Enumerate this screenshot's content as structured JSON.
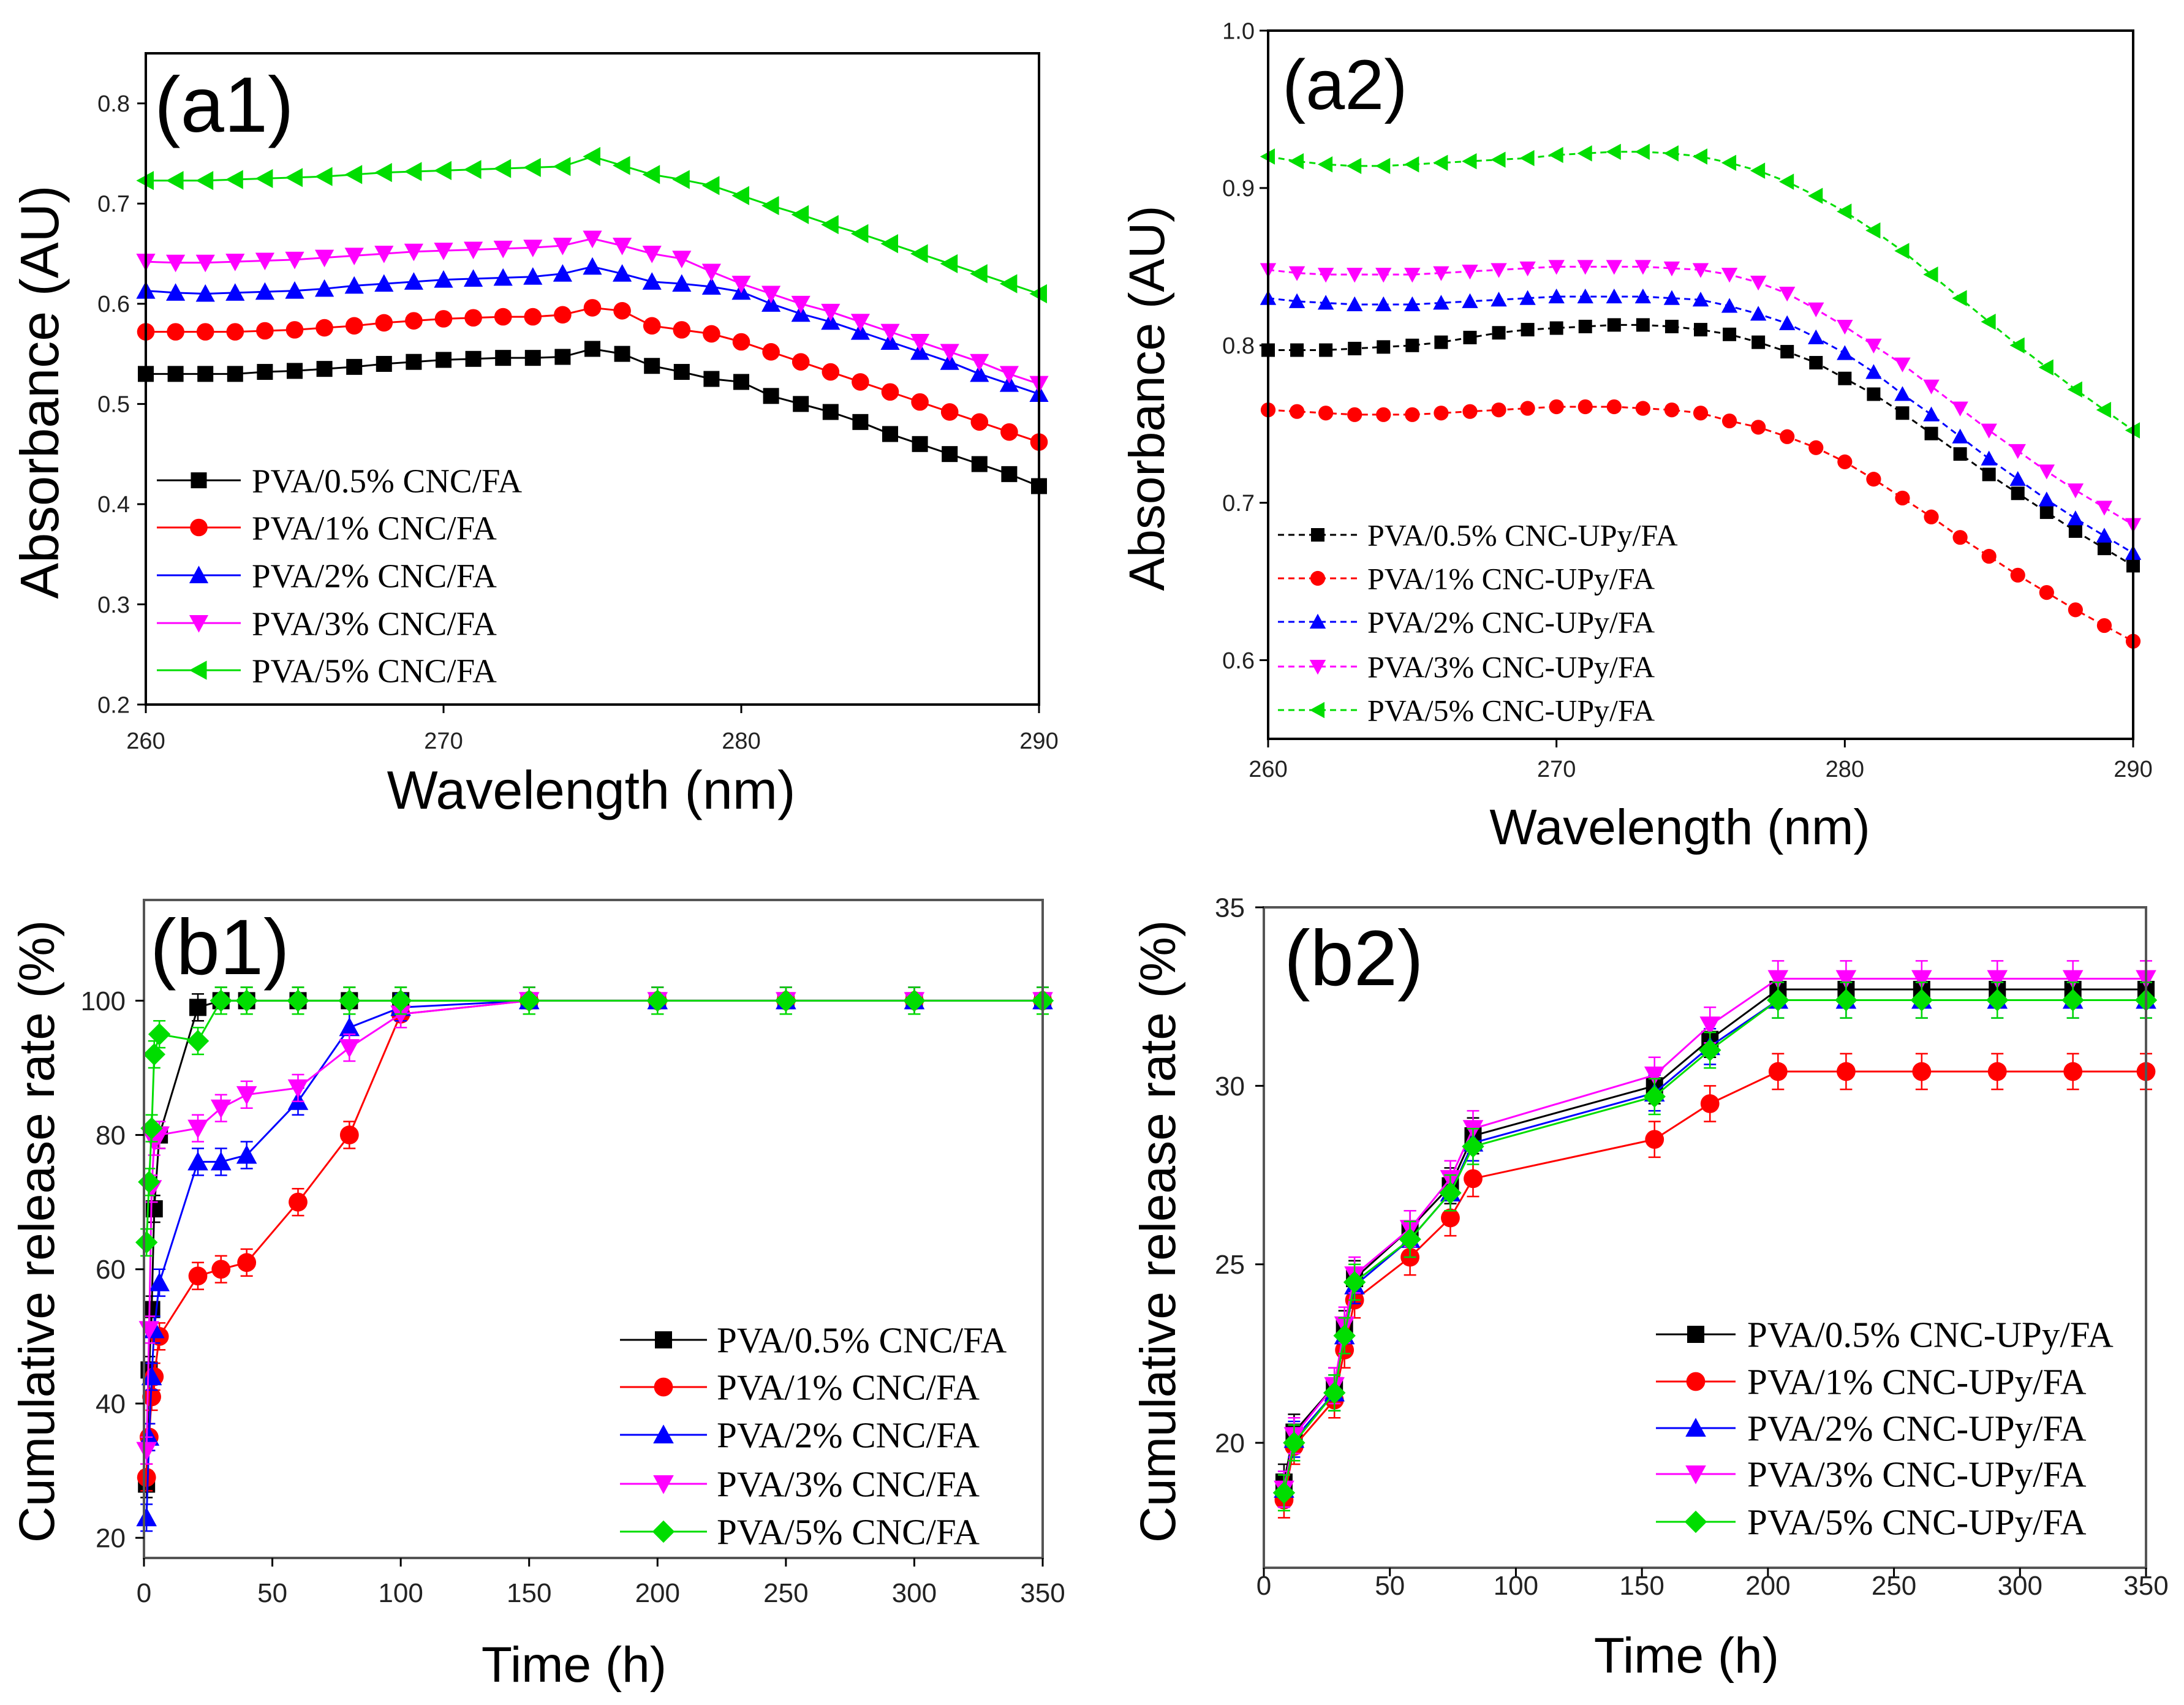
{
  "chart_data": [
    {
      "type": "line",
      "panel_label": "(a1)",
      "xlabel": "Wavelength (nm)",
      "ylabel": "Absorbance (AU)",
      "xlim": [
        260,
        290
      ],
      "ylim": [
        0.2,
        0.85
      ],
      "xticks": [
        260,
        270,
        280,
        290
      ],
      "xtick_labels": [
        "260",
        "270",
        "280",
        "290"
      ],
      "yticks": [
        0.2,
        0.3,
        0.4,
        0.5,
        0.6,
        0.7,
        0.8
      ],
      "ytick_labels": [
        "0.2",
        "0.3",
        "0.4",
        "0.5",
        "0.6",
        "0.7",
        "0.8"
      ],
      "line_style": "solid",
      "legend_position": "bottom-left",
      "x": [
        260,
        261,
        262,
        263,
        264,
        265,
        266,
        267,
        268,
        269,
        270,
        271,
        272,
        273,
        274,
        275,
        276,
        277,
        278,
        279,
        280,
        281,
        282,
        283,
        284,
        285,
        286,
        287,
        288,
        289,
        290
      ],
      "series": [
        {
          "name": "PVA/0.5% CNC/FA",
          "color": "#000000",
          "marker": "square",
          "values": [
            0.53,
            0.53,
            0.53,
            0.53,
            0.532,
            0.533,
            0.535,
            0.537,
            0.54,
            0.542,
            0.544,
            0.545,
            0.546,
            0.546,
            0.547,
            0.555,
            0.55,
            0.538,
            0.532,
            0.525,
            0.522,
            0.508,
            0.5,
            0.492,
            0.482,
            0.47,
            0.46,
            0.45,
            0.44,
            0.43,
            0.418
          ]
        },
        {
          "name": "PVA/1% CNC/FA",
          "color": "#ff0000",
          "marker": "circle",
          "values": [
            0.572,
            0.572,
            0.572,
            0.572,
            0.573,
            0.574,
            0.576,
            0.578,
            0.581,
            0.583,
            0.585,
            0.586,
            0.587,
            0.587,
            0.589,
            0.596,
            0.593,
            0.578,
            0.574,
            0.57,
            0.562,
            0.552,
            0.542,
            0.532,
            0.522,
            0.512,
            0.502,
            0.492,
            0.482,
            0.472,
            0.462
          ]
        },
        {
          "name": "PVA/2% CNC/FA",
          "color": "#0000ff",
          "marker": "triangle-up",
          "values": [
            0.613,
            0.611,
            0.61,
            0.611,
            0.612,
            0.613,
            0.615,
            0.618,
            0.62,
            0.622,
            0.624,
            0.625,
            0.626,
            0.627,
            0.63,
            0.637,
            0.63,
            0.622,
            0.62,
            0.617,
            0.612,
            0.6,
            0.59,
            0.582,
            0.572,
            0.562,
            0.552,
            0.542,
            0.53,
            0.52,
            0.51
          ]
        },
        {
          "name": "PVA/3% CNC/FA",
          "color": "#ff00ff",
          "marker": "triangle-down",
          "values": [
            0.642,
            0.641,
            0.641,
            0.642,
            0.643,
            0.644,
            0.646,
            0.648,
            0.65,
            0.652,
            0.653,
            0.654,
            0.655,
            0.656,
            0.658,
            0.665,
            0.658,
            0.65,
            0.645,
            0.632,
            0.62,
            0.61,
            0.6,
            0.592,
            0.582,
            0.572,
            0.562,
            0.552,
            0.542,
            0.53,
            0.52
          ]
        },
        {
          "name": "PVA/5% CNC/FA",
          "color": "#00dd00",
          "marker": "triangle-left",
          "values": [
            0.723,
            0.723,
            0.723,
            0.724,
            0.725,
            0.726,
            0.727,
            0.729,
            0.731,
            0.732,
            0.733,
            0.734,
            0.735,
            0.736,
            0.737,
            0.747,
            0.738,
            0.729,
            0.724,
            0.718,
            0.708,
            0.698,
            0.689,
            0.679,
            0.67,
            0.66,
            0.65,
            0.64,
            0.63,
            0.62,
            0.61
          ]
        }
      ]
    },
    {
      "type": "line",
      "panel_label": "(a2)",
      "xlabel": "Wavelength (nm)",
      "ylabel": "Absorbance (AU)",
      "xlim": [
        260,
        290
      ],
      "ylim": [
        0.55,
        1.0
      ],
      "xticks": [
        260,
        270,
        280,
        290
      ],
      "xtick_labels": [
        "260",
        "270",
        "280",
        "290"
      ],
      "yticks": [
        0.6,
        0.7,
        0.8,
        0.9,
        1.0
      ],
      "ytick_labels": [
        "0.6",
        "0.7",
        "0.8",
        "0.9",
        "1.0"
      ],
      "line_style": "dashed",
      "legend_position": "bottom-left",
      "x": [
        260,
        261,
        262,
        263,
        264,
        265,
        266,
        267,
        268,
        269,
        270,
        271,
        272,
        273,
        274,
        275,
        276,
        277,
        278,
        279,
        280,
        281,
        282,
        283,
        284,
        285,
        286,
        287,
        288,
        289,
        290
      ],
      "series": [
        {
          "name": "PVA/0.5% CNC-UPy/FA",
          "color": "#000000",
          "marker": "square",
          "values": [
            0.797,
            0.797,
            0.797,
            0.798,
            0.799,
            0.8,
            0.802,
            0.805,
            0.808,
            0.81,
            0.811,
            0.812,
            0.813,
            0.813,
            0.812,
            0.81,
            0.807,
            0.802,
            0.796,
            0.789,
            0.779,
            0.769,
            0.757,
            0.744,
            0.731,
            0.718,
            0.706,
            0.694,
            0.682,
            0.671,
            0.66
          ]
        },
        {
          "name": "PVA/1% CNC-UPy/FA",
          "color": "#ff0000",
          "marker": "circle",
          "values": [
            0.759,
            0.758,
            0.757,
            0.756,
            0.756,
            0.756,
            0.757,
            0.758,
            0.759,
            0.76,
            0.761,
            0.761,
            0.761,
            0.76,
            0.759,
            0.757,
            0.752,
            0.748,
            0.742,
            0.735,
            0.726,
            0.715,
            0.703,
            0.691,
            0.678,
            0.666,
            0.654,
            0.643,
            0.632,
            0.622,
            0.612
          ]
        },
        {
          "name": "PVA/2% CNC-UPy/FA",
          "color": "#0000ff",
          "marker": "triangle-up",
          "values": [
            0.83,
            0.828,
            0.827,
            0.826,
            0.826,
            0.826,
            0.827,
            0.828,
            0.829,
            0.83,
            0.831,
            0.831,
            0.831,
            0.831,
            0.83,
            0.829,
            0.825,
            0.82,
            0.814,
            0.805,
            0.795,
            0.783,
            0.769,
            0.756,
            0.742,
            0.728,
            0.715,
            0.702,
            0.69,
            0.679,
            0.668
          ]
        },
        {
          "name": "PVA/3% CNC-UPy/FA",
          "color": "#ff00ff",
          "marker": "triangle-down",
          "values": [
            0.848,
            0.846,
            0.845,
            0.845,
            0.845,
            0.845,
            0.846,
            0.847,
            0.848,
            0.849,
            0.85,
            0.85,
            0.85,
            0.85,
            0.849,
            0.848,
            0.845,
            0.84,
            0.833,
            0.823,
            0.812,
            0.8,
            0.788,
            0.774,
            0.76,
            0.746,
            0.733,
            0.72,
            0.708,
            0.697,
            0.686
          ]
        },
        {
          "name": "PVA/5% CNC-UPy/FA",
          "color": "#00dd00",
          "marker": "triangle-left",
          "values": [
            0.92,
            0.917,
            0.915,
            0.914,
            0.914,
            0.915,
            0.916,
            0.917,
            0.918,
            0.919,
            0.921,
            0.922,
            0.923,
            0.923,
            0.922,
            0.92,
            0.916,
            0.911,
            0.904,
            0.895,
            0.885,
            0.873,
            0.86,
            0.845,
            0.83,
            0.815,
            0.8,
            0.786,
            0.772,
            0.759,
            0.746
          ]
        }
      ]
    },
    {
      "type": "line",
      "panel_label": "(b1)",
      "xlabel": "Time (h)",
      "ylabel": "Cumulative release rate (%)",
      "xlim": [
        0,
        350
      ],
      "ylim": [
        17,
        115
      ],
      "xticks": [
        0,
        50,
        100,
        150,
        200,
        250,
        300,
        350
      ],
      "xtick_labels": [
        "0",
        "50",
        "100",
        "150",
        "200",
        "250",
        "300",
        "350"
      ],
      "yticks": [
        20,
        40,
        60,
        80,
        100
      ],
      "ytick_labels": [
        "20",
        "40",
        "60",
        "80",
        "100"
      ],
      "line_style": "solid",
      "error_bars": true,
      "legend_position": "bottom-right",
      "x": [
        1,
        2,
        3,
        4,
        6,
        21,
        30,
        40,
        60,
        80,
        100,
        150,
        200,
        250,
        300,
        350
      ],
      "series": [
        {
          "name": "PVA/0.5% CNC/FA",
          "color": "#000000",
          "marker": "square",
          "yerr": 2,
          "values": [
            28,
            45,
            54,
            69,
            80,
            99,
            100,
            100,
            100,
            100,
            100,
            100,
            100,
            100,
            100,
            100
          ]
        },
        {
          "name": "PVA/1% CNC/FA",
          "color": "#ff0000",
          "marker": "circle",
          "yerr": 2,
          "values": [
            29,
            35,
            41,
            44,
            50,
            59,
            60,
            61,
            70,
            80,
            98,
            100,
            100,
            100,
            100,
            100
          ]
        },
        {
          "name": "PVA/2% CNC/FA",
          "color": "#0000ff",
          "marker": "triangle-up",
          "yerr": 2,
          "values": [
            23,
            35,
            44,
            51,
            58,
            76,
            76,
            77,
            85,
            96,
            99,
            100,
            100,
            100,
            100,
            100
          ]
        },
        {
          "name": "PVA/3% CNC/FA",
          "color": "#ff00ff",
          "marker": "triangle-down",
          "yerr": 2,
          "values": [
            33,
            51,
            72,
            79,
            80,
            81,
            84,
            86,
            87,
            93,
            98,
            100,
            100,
            100,
            100,
            100
          ]
        },
        {
          "name": "PVA/5% CNC/FA",
          "color": "#00dd00",
          "marker": "diamond",
          "yerr": 2,
          "values": [
            64,
            73,
            81,
            92,
            95,
            94,
            100,
            100,
            100,
            100,
            100,
            100,
            100,
            100,
            100,
            100
          ]
        }
      ]
    },
    {
      "type": "line",
      "panel_label": "(b2)",
      "xlabel": "Time (h)",
      "ylabel": "Cumulative release rate (%)",
      "xlim": [
        0,
        350
      ],
      "ylim": [
        16.5,
        35
      ],
      "xticks": [
        0,
        50,
        100,
        150,
        200,
        250,
        300,
        350
      ],
      "xtick_labels": [
        "0",
        "50",
        "100",
        "150",
        "200",
        "250",
        "300",
        "350"
      ],
      "yticks": [
        20,
        25,
        30,
        35
      ],
      "ytick_labels": [
        "20",
        "25",
        "30",
        "35"
      ],
      "line_style": "solid",
      "error_bars": true,
      "legend_position": "bottom-right",
      "x": [
        8,
        12,
        28,
        32,
        36,
        58,
        74,
        83,
        155,
        177,
        204,
        231,
        261,
        291,
        321,
        350
      ],
      "series": [
        {
          "name": "PVA/0.5% CNC-UPy/FA",
          "color": "#000000",
          "marker": "square",
          "yerr": 0.5,
          "values": [
            18.9,
            20.3,
            21.6,
            23.2,
            24.6,
            26.0,
            27.2,
            28.6,
            30.0,
            31.3,
            32.7,
            32.7,
            32.7,
            32.7,
            32.7,
            32.7
          ]
        },
        {
          "name": "PVA/1% CNC-UPy/FA",
          "color": "#ff0000",
          "marker": "circle",
          "yerr": 0.5,
          "values": [
            18.4,
            19.9,
            21.2,
            22.6,
            24.0,
            25.2,
            26.3,
            27.4,
            28.5,
            29.5,
            30.4,
            30.4,
            30.4,
            30.4,
            30.4,
            30.4
          ]
        },
        {
          "name": "PVA/2% CNC-UPy/FA",
          "color": "#0000ff",
          "marker": "triangle-up",
          "yerr": 0.5,
          "values": [
            18.7,
            20.1,
            21.4,
            23.0,
            24.4,
            25.7,
            27.0,
            28.4,
            29.8,
            31.1,
            32.4,
            32.4,
            32.4,
            32.4,
            32.4,
            32.4
          ]
        },
        {
          "name": "PVA/3% CNC-UPy/FA",
          "color": "#ff00ff",
          "marker": "triangle-down",
          "yerr": 0.5,
          "values": [
            18.7,
            20.2,
            21.6,
            23.3,
            24.7,
            26.0,
            27.4,
            28.8,
            30.3,
            31.7,
            33.0,
            33.0,
            33.0,
            33.0,
            33.0,
            33.0
          ]
        },
        {
          "name": "PVA/5% CNC-UPy/FA",
          "color": "#00dd00",
          "marker": "diamond",
          "yerr": 0.5,
          "values": [
            18.6,
            20.0,
            21.4,
            23.0,
            24.5,
            25.7,
            27.0,
            28.3,
            29.7,
            31.0,
            32.4,
            32.4,
            32.4,
            32.4,
            32.4,
            32.4
          ]
        }
      ]
    }
  ]
}
